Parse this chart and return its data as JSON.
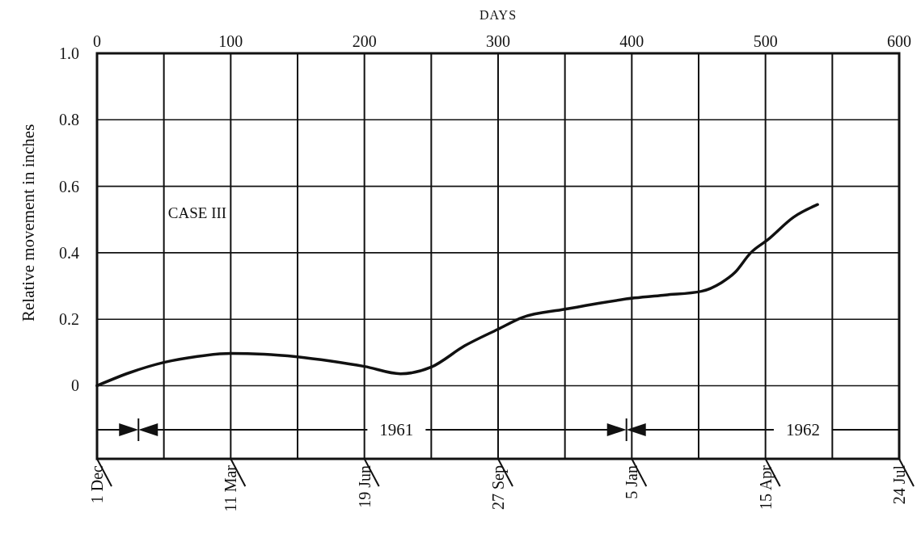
{
  "chart_data": {
    "type": "line",
    "ylabel": "Relative movement in inches",
    "xlabel": "DAYS",
    "x": [
      0,
      25,
      50,
      75,
      100,
      125,
      150,
      175,
      200,
      227,
      250,
      275,
      300,
      318,
      350,
      375,
      402,
      425,
      452,
      467,
      477,
      489,
      502,
      521,
      539
    ],
    "series": [
      {
        "color": "#111111",
        "values": [
          0,
          0.04,
          0.07,
          0.088,
          0.097,
          0.095,
          0.087,
          0.074,
          0.058,
          0.036,
          0.056,
          0.12,
          0.17,
          0.205,
          0.23,
          0.248,
          0.264,
          0.273,
          0.284,
          0.31,
          0.34,
          0.4,
          0.44,
          0.507,
          0.545
        ]
      }
    ],
    "xlim": [
      0,
      600
    ],
    "xticks": [
      0,
      100,
      200,
      300,
      400,
      500,
      600
    ],
    "x2lim": [
      "1960-12-01",
      "1962-07-24"
    ],
    "x2ticks": [
      {
        "value": "1960-12-01",
        "label": "1 Dec"
      },
      {
        "value": "1961-03-11",
        "label": "11 Mar"
      },
      {
        "value": "1961-06-19",
        "label": "19 Jun"
      },
      {
        "value": "1961-09-27",
        "label": "27 Sep"
      },
      {
        "value": "1962-01-05",
        "label": "5 Jan"
      },
      {
        "value": "1962-04-15",
        "label": "15 Apr"
      },
      {
        "value": "1962-07-24",
        "label": "24 Jul"
      }
    ],
    "ylim": [
      -0.22,
      1
    ],
    "yticks": [
      0,
      0.2,
      0.4,
      0.6,
      0.8,
      {
        "value": 1,
        "label": "1.0"
      }
    ],
    "grid": true,
    "marker": "none",
    "line_style": "solid",
    "annotations": [
      "CASE III",
      "1961",
      "1962"
    ]
  }
}
